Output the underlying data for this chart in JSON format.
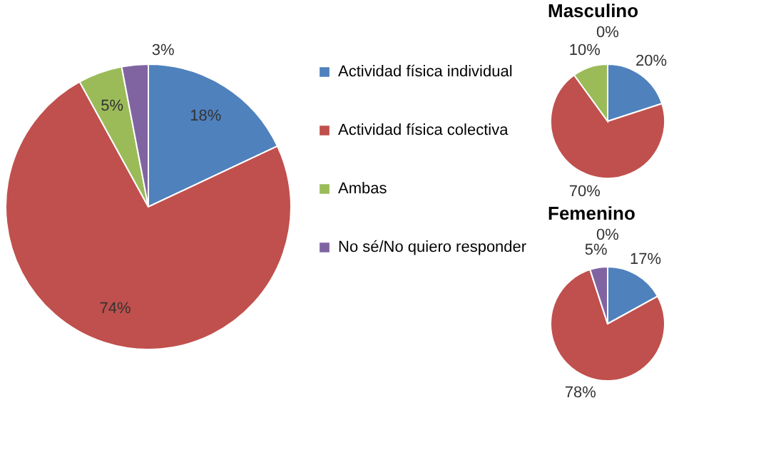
{
  "chart_data": [
    {
      "type": "pie",
      "categories": [
        "Actividad física individual",
        "Actividad física colectiva",
        "Ambas",
        "No sé/No quiero responder"
      ],
      "values": [
        18,
        74,
        5,
        3
      ],
      "value_labels": [
        "18%",
        "74%",
        "5%",
        "3%"
      ],
      "colors": [
        "#4f81bd",
        "#c0504d",
        "#9bbb59",
        "#8064a2"
      ],
      "legend": "right"
    },
    {
      "type": "pie",
      "title": "Masculino",
      "values": [
        20,
        70,
        10,
        0
      ],
      "value_labels": [
        "20%",
        "70%",
        "10%",
        "0%"
      ],
      "colors": [
        "#4f81bd",
        "#c0504d",
        "#9bbb59",
        "#8064a2"
      ]
    },
    {
      "type": "pie",
      "title": "Femenino",
      "values": [
        17,
        78,
        0,
        5
      ],
      "value_labels": [
        "17%",
        "78%",
        "0%",
        "5%"
      ],
      "colors": [
        "#4f81bd",
        "#c0504d",
        "#9bbb59",
        "#8064a2"
      ]
    }
  ]
}
